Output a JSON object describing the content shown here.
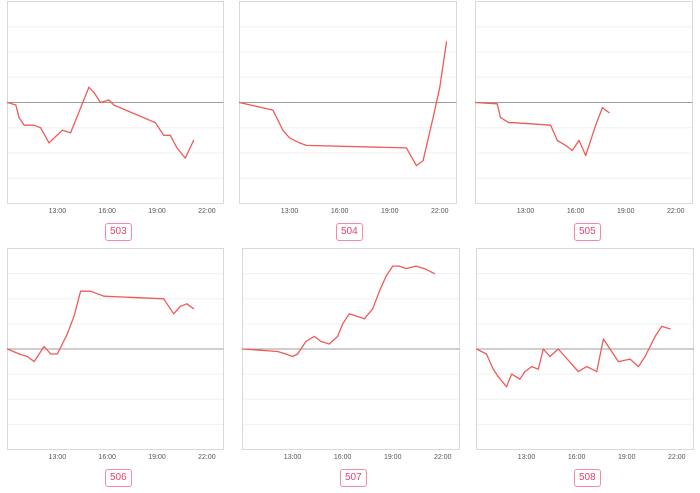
{
  "accent_color": "#f05a5a",
  "badge_color": "#e8426a",
  "chart_data": [
    {
      "type": "line",
      "label": "503",
      "x_ticks": [
        "13:00",
        "16:00",
        "19:00",
        "22:00"
      ],
      "xlim": [
        10,
        23
      ],
      "ylim": [
        -4,
        4
      ],
      "baseline": 0,
      "series": [
        {
          "x": [
            10.0,
            10.5,
            10.7,
            11.0,
            11.6,
            12.0,
            12.5,
            13.3,
            13.8,
            14.9,
            15.2,
            15.6,
            16.1,
            16.4,
            18.9,
            19.4,
            19.8,
            20.2,
            20.7,
            21.2
          ],
          "y": [
            0,
            -0.1,
            -0.6,
            -0.9,
            -0.9,
            -1.0,
            -1.6,
            -1.1,
            -1.2,
            0.6,
            0.4,
            0.0,
            0.1,
            -0.1,
            -0.8,
            -1.3,
            -1.3,
            -1.8,
            -2.2,
            -1.5
          ]
        }
      ]
    },
    {
      "type": "line",
      "label": "504",
      "x_ticks": [
        "13:00",
        "16:00",
        "19:00",
        "22:00"
      ],
      "xlim": [
        10,
        23
      ],
      "ylim": [
        -4,
        4
      ],
      "baseline": 0,
      "series": [
        {
          "x": [
            10.0,
            12.0,
            12.6,
            13.0,
            13.6,
            14.0,
            20.0,
            20.6,
            21.0,
            21.6,
            22.0,
            22.4
          ],
          "y": [
            0,
            -0.3,
            -1.1,
            -1.4,
            -1.6,
            -1.7,
            -1.8,
            -2.5,
            -2.3,
            -0.6,
            0.6,
            2.4
          ]
        }
      ]
    },
    {
      "type": "line",
      "label": "505",
      "x_ticks": [
        "13:00",
        "16:00",
        "19:00",
        "22:00"
      ],
      "xlim": [
        10,
        23
      ],
      "ylim": [
        -4,
        4
      ],
      "baseline": 0,
      "series": [
        {
          "x": [
            10.0,
            11.3,
            11.5,
            12.0,
            12.3,
            14.5,
            14.9,
            15.4,
            15.8,
            16.2,
            16.6,
            17.2,
            17.6,
            18.0
          ],
          "y": [
            0,
            -0.05,
            -0.6,
            -0.8,
            -0.8,
            -0.9,
            -1.5,
            -1.7,
            -1.9,
            -1.5,
            -2.1,
            -0.9,
            -0.2,
            -0.4
          ]
        }
      ]
    },
    {
      "type": "line",
      "label": "506",
      "x_ticks": [
        "13:00",
        "16:00",
        "19:00",
        "22:00"
      ],
      "xlim": [
        10,
        23
      ],
      "ylim": [
        -4,
        4
      ],
      "baseline": 0,
      "series": [
        {
          "x": [
            10.0,
            10.7,
            11.2,
            11.6,
            12.2,
            12.6,
            13.0,
            13.6,
            14.0,
            14.4,
            15.0,
            15.8,
            19.4,
            20.0,
            20.4,
            20.8,
            21.2
          ],
          "y": [
            0,
            -0.2,
            -0.3,
            -0.5,
            0.1,
            -0.2,
            -0.2,
            0.6,
            1.3,
            2.3,
            2.3,
            2.1,
            2.0,
            1.4,
            1.7,
            1.8,
            1.6
          ]
        }
      ]
    },
    {
      "type": "line",
      "label": "507",
      "x_ticks": [
        "13:00",
        "16:00",
        "19:00",
        "22:00"
      ],
      "xlim": [
        10,
        23
      ],
      "ylim": [
        -4,
        4
      ],
      "baseline": 0,
      "series": [
        {
          "x": [
            10.0,
            12.1,
            12.6,
            13.0,
            13.3,
            13.8,
            14.3,
            14.7,
            15.2,
            15.7,
            16.0,
            16.4,
            17.3,
            17.8,
            18.2,
            18.6,
            19.0,
            19.4,
            19.8,
            20.4,
            20.9,
            21.5
          ],
          "y": [
            0,
            -0.1,
            -0.2,
            -0.3,
            -0.2,
            0.3,
            0.5,
            0.3,
            0.2,
            0.5,
            1.0,
            1.4,
            1.2,
            1.6,
            2.3,
            2.9,
            3.3,
            3.3,
            3.2,
            3.3,
            3.2,
            3.0
          ]
        }
      ]
    },
    {
      "type": "line",
      "label": "508",
      "x_ticks": [
        "13:00",
        "16:00",
        "19:00",
        "22:00"
      ],
      "xlim": [
        10,
        23
      ],
      "ylim": [
        -4,
        4
      ],
      "baseline": 0,
      "series": [
        {
          "x": [
            10.0,
            10.6,
            11.0,
            11.3,
            11.8,
            12.1,
            12.6,
            12.9,
            13.3,
            13.7,
            14.0,
            14.4,
            14.9,
            15.3,
            15.7,
            16.1,
            16.6,
            17.2,
            17.6,
            18.0,
            18.5,
            19.2,
            19.7,
            20.1,
            20.7,
            21.1,
            21.6
          ],
          "y": [
            0,
            -0.2,
            -0.8,
            -1.1,
            -1.5,
            -1.0,
            -1.2,
            -0.9,
            -0.7,
            -0.8,
            0,
            -0.3,
            0,
            -0.3,
            -0.6,
            -0.9,
            -0.7,
            -0.9,
            0.4,
            0,
            -0.5,
            -0.4,
            -0.7,
            -0.3,
            0.5,
            0.9,
            0.8
          ]
        }
      ]
    }
  ]
}
